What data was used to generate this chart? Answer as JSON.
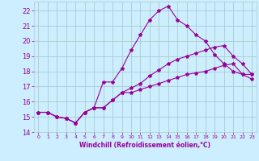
{
  "title": "",
  "xlabel": "Windchill (Refroidissement éolien,°C)",
  "ylabel": "",
  "background_color": "#cceeff",
  "line_color": "#990099",
  "grid_color": "#aacccc",
  "xlim": [
    -0.5,
    23.5
  ],
  "ylim": [
    14,
    22.6
  ],
  "yticks": [
    14,
    15,
    16,
    17,
    18,
    19,
    20,
    21,
    22
  ],
  "xticks": [
    0,
    1,
    2,
    3,
    4,
    5,
    6,
    7,
    8,
    9,
    10,
    11,
    12,
    13,
    14,
    15,
    16,
    17,
    18,
    19,
    20,
    21,
    22,
    23
  ],
  "series": [
    {
      "x": [
        0,
        1,
        2,
        3,
        4,
        5,
        6,
        7,
        8,
        9,
        10,
        11,
        12,
        13,
        14,
        15,
        16,
        17,
        18,
        19,
        20,
        21,
        22,
        23
      ],
      "y": [
        15.3,
        15.3,
        15.0,
        14.9,
        14.6,
        15.3,
        15.6,
        17.3,
        17.3,
        18.2,
        19.4,
        20.4,
        21.4,
        22.0,
        22.3,
        21.4,
        21.0,
        20.4,
        20.0,
        19.1,
        18.5,
        18.0,
        17.8,
        17.8
      ]
    },
    {
      "x": [
        0,
        1,
        2,
        3,
        4,
        5,
        6,
        7,
        8,
        9,
        10,
        11,
        12,
        13,
        14,
        15,
        16,
        17,
        18,
        19,
        20,
        21,
        22,
        23
      ],
      "y": [
        15.3,
        15.3,
        15.0,
        14.9,
        14.6,
        15.3,
        15.6,
        15.6,
        16.1,
        16.6,
        16.9,
        17.2,
        17.7,
        18.1,
        18.5,
        18.8,
        19.0,
        19.2,
        19.4,
        19.6,
        19.7,
        19.0,
        18.5,
        17.8
      ]
    },
    {
      "x": [
        0,
        1,
        2,
        3,
        4,
        5,
        6,
        7,
        8,
        9,
        10,
        11,
        12,
        13,
        14,
        15,
        16,
        17,
        18,
        19,
        20,
        21,
        22,
        23
      ],
      "y": [
        15.3,
        15.3,
        15.0,
        14.9,
        14.6,
        15.3,
        15.6,
        15.6,
        16.1,
        16.6,
        16.6,
        16.8,
        17.0,
        17.2,
        17.4,
        17.6,
        17.8,
        17.9,
        18.0,
        18.2,
        18.4,
        18.5,
        17.8,
        17.5
      ]
    }
  ]
}
